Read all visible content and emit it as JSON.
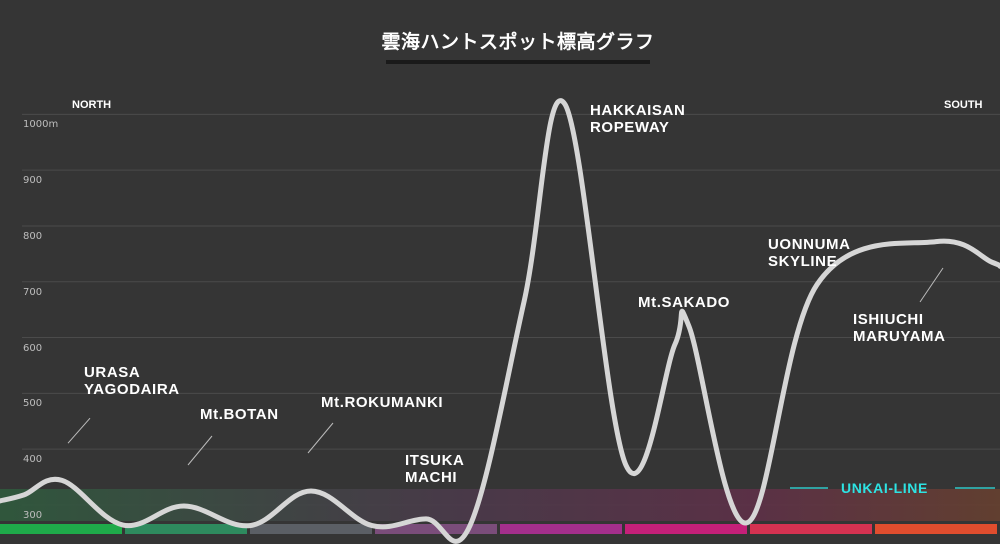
{
  "title": "雲海ハントスポット標高グラフ",
  "directions": {
    "north": "NORTH",
    "south": "SOUTH"
  },
  "unkai_line_label": "UNKAI-LINE",
  "colors": {
    "background": "#353535",
    "line": "#d6d6d6",
    "unkai_label": "#2de3e3",
    "bottom_band": [
      "#1faa4a",
      "#2e8a5e",
      "#5b5f65",
      "#7a4d7a",
      "#a42f8c",
      "#c42079",
      "#d53251",
      "#e04d2e",
      "#ef6a16"
    ]
  },
  "chart_data": {
    "type": "line",
    "title": "雲海ハントスポット標高グラフ",
    "xlabel": "",
    "ylabel": "",
    "ylim": [
      230,
      1110
    ],
    "y_ticks": [
      {
        "value": 300,
        "label": "300"
      },
      {
        "value": 400,
        "label": "400"
      },
      {
        "value": 500,
        "label": "500"
      },
      {
        "value": 600,
        "label": "600"
      },
      {
        "value": 700,
        "label": "700"
      },
      {
        "value": 800,
        "label": "800"
      },
      {
        "value": 900,
        "label": "900"
      },
      {
        "value": 1000,
        "label": "1000m"
      }
    ],
    "grid": true,
    "xlim": [
      0,
      100
    ],
    "elevation_profile": [
      {
        "x": 2.4,
        "y": 318
      },
      {
        "x": 6.2,
        "y": 344
      },
      {
        "x": 12.3,
        "y": 264
      },
      {
        "x": 18.4,
        "y": 298
      },
      {
        "x": 25.0,
        "y": 263
      },
      {
        "x": 31.1,
        "y": 325
      },
      {
        "x": 37.2,
        "y": 263
      },
      {
        "x": 42.6,
        "y": 275
      },
      {
        "x": 47.0,
        "y": 263
      },
      {
        "x": 52.4,
        "y": 664
      },
      {
        "x": 56.5,
        "y": 1018
      },
      {
        "x": 62.6,
        "y": 371
      },
      {
        "x": 67.5,
        "y": 588
      },
      {
        "x": 68.9,
        "y": 620
      },
      {
        "x": 74.7,
        "y": 268
      },
      {
        "x": 81.7,
        "y": 695
      },
      {
        "x": 93.6,
        "y": 772
      },
      {
        "x": 99.2,
        "y": 735
      }
    ],
    "unkai_line": 300,
    "spots": [
      {
        "name": "URASA\nYAGODAIRA",
        "x": 6.2,
        "y": 344
      },
      {
        "name": "Mt.BOTAN",
        "x": 18.4,
        "y": 298
      },
      {
        "name": "Mt.ROKUMANKI",
        "x": 31.1,
        "y": 325
      },
      {
        "name": "ITSUKA\nMACHI",
        "x": 42.6,
        "y": 275
      },
      {
        "name": "HAKKAISAN\nROPEWAY",
        "x": 56.5,
        "y": 1018
      },
      {
        "name": "Mt.SAKADO",
        "x": 68.9,
        "y": 620
      },
      {
        "name": "UONNUMA\nSKYLINE",
        "x": 81.7,
        "y": 695
      },
      {
        "name": "ISHIUCHI\nMARUYAMA",
        "x": 93.6,
        "y": 772
      }
    ]
  }
}
